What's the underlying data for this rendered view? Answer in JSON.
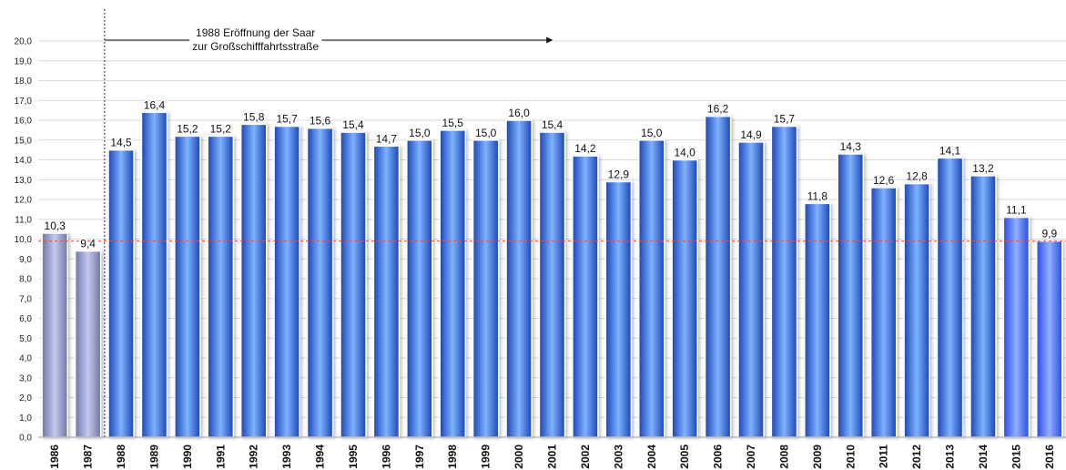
{
  "chart_data": {
    "type": "bar",
    "title": "",
    "xlabel": "",
    "ylabel": "",
    "ylim": [
      0,
      20
    ],
    "ytick_step": 1,
    "y_tick_labels": [
      "0,0",
      "1,0",
      "2,0",
      "3,0",
      "4,0",
      "5,0",
      "6,0",
      "7,0",
      "8,0",
      "9,0",
      "10,0",
      "11,0",
      "12,0",
      "13,0",
      "14,0",
      "15,0",
      "16,0",
      "17,0",
      "18,0",
      "19,0",
      "20,0"
    ],
    "grid": true,
    "categories": [
      "1986",
      "1987",
      "1988",
      "1989",
      "1990",
      "1991",
      "1992",
      "1993",
      "1994",
      "1995",
      "1996",
      "1997",
      "1998",
      "1999",
      "2000",
      "2001",
      "2002",
      "2003",
      "2004",
      "2005",
      "2006",
      "2007",
      "2008",
      "2009",
      "2010",
      "2011",
      "2012",
      "2013",
      "2014",
      "2015",
      "2016"
    ],
    "values": [
      10.3,
      9.4,
      14.5,
      16.4,
      15.2,
      15.2,
      15.8,
      15.7,
      15.6,
      15.4,
      14.7,
      15.0,
      15.5,
      15.0,
      16.0,
      15.4,
      14.2,
      12.9,
      15.0,
      14.0,
      16.2,
      14.9,
      15.7,
      11.8,
      14.3,
      12.6,
      12.8,
      14.1,
      13.2,
      11.1,
      9.9
    ],
    "value_labels": [
      "10,3",
      "9,4",
      "14,5",
      "16,4",
      "15,2",
      "15,2",
      "15,8",
      "15,7",
      "15,6",
      "15,4",
      "14,7",
      "15,0",
      "15,5",
      "15,0",
      "16,0",
      "15,4",
      "14,2",
      "12,9",
      "15,0",
      "14,0",
      "16,2",
      "14,9",
      "15,7",
      "11,8",
      "14,3",
      "12,6",
      "12,8",
      "14,1",
      "13,2",
      "11,1",
      "9,9"
    ],
    "bar_groups": [
      "pre",
      "pre",
      "main",
      "main",
      "main",
      "main",
      "main",
      "main",
      "main",
      "main",
      "main",
      "main",
      "main",
      "main",
      "main",
      "main",
      "main",
      "main",
      "main",
      "main",
      "main",
      "main",
      "main",
      "main",
      "main",
      "main",
      "main",
      "main",
      "main",
      "recent",
      "recent"
    ],
    "colors": {
      "pre": "#8f97c8",
      "main": "#2f6fd6",
      "recent": "#3366ff",
      "reference_line": "#e05050"
    },
    "reference_line": {
      "value": 9.9,
      "style": "dashed"
    },
    "annotation": {
      "line1": "1988 Eröffnung der Saar",
      "line2": "zur Großschifffahrtsstraße",
      "from_category": "1988",
      "to_category": "2001"
    }
  }
}
